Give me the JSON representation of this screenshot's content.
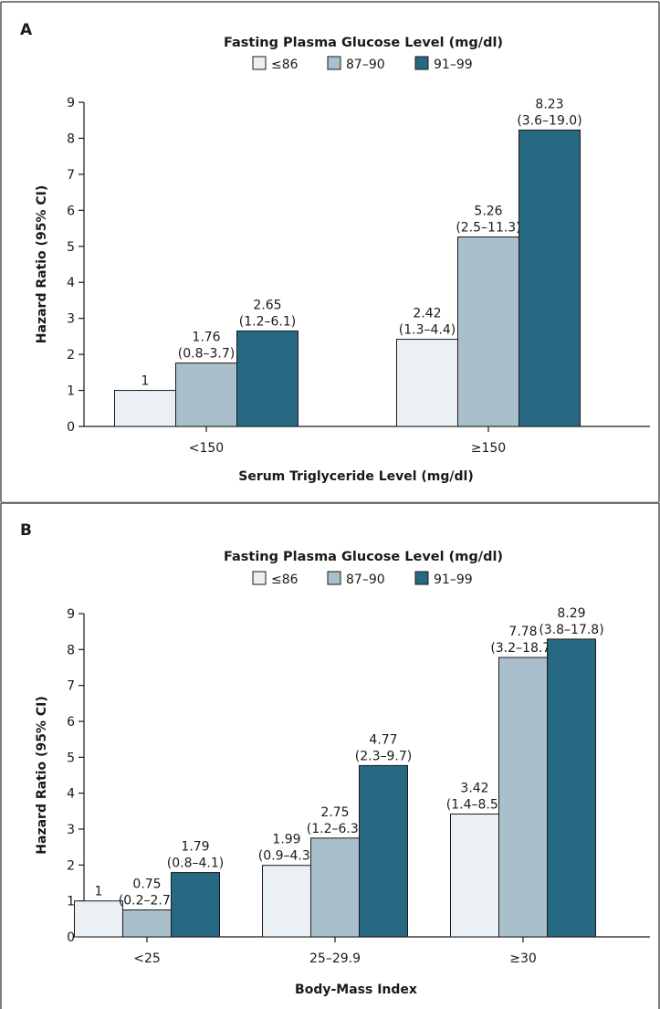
{
  "panels": [
    {
      "letter": "A",
      "legend_title": "Fasting Plasma Glucose Level (mg/dl)",
      "legend": [
        "≤86",
        "87–90",
        "91–99"
      ]
    },
    {
      "letter": "B",
      "legend_title": "Fasting Plasma Glucose Level (mg/dl)",
      "legend": [
        "≤86",
        "87–90",
        "91–99"
      ]
    }
  ],
  "colors": {
    "series": [
      "#eaf0f3",
      "#a9c0cc",
      "#276983"
    ],
    "stroke": "#1a1a1a",
    "border": "#555555"
  },
  "chart_data": [
    {
      "type": "bar",
      "title": "",
      "xlabel": "Serum Triglyceride Level (mg/dl)",
      "ylabel": "Hazard Ratio (95% CI)",
      "ylim": [
        0,
        9
      ],
      "yticks": [
        0,
        1,
        2,
        3,
        4,
        5,
        6,
        7,
        8,
        9
      ],
      "grid": false,
      "legend_position": "top-center",
      "categories": [
        "<150",
        "≥150"
      ],
      "series": [
        {
          "name": "≤86",
          "values": [
            1,
            2.42
          ],
          "labels": [
            [
              "1"
            ],
            [
              "2.42",
              "(1.3–4.4)"
            ]
          ]
        },
        {
          "name": "87–90",
          "values": [
            1.76,
            5.26
          ],
          "labels": [
            [
              "1.76",
              "(0.8–3.7)"
            ],
            [
              "5.26",
              "(2.5–11.3)"
            ]
          ]
        },
        {
          "name": "91–99",
          "values": [
            2.65,
            8.23
          ],
          "labels": [
            [
              "2.65",
              "(1.2–6.1)"
            ],
            [
              "8.23",
              "(3.6–19.0)"
            ]
          ]
        }
      ]
    },
    {
      "type": "bar",
      "title": "",
      "xlabel": "Body-Mass Index",
      "ylabel": "Hazard Ratio (95% CI)",
      "ylim": [
        0,
        9
      ],
      "yticks": [
        0,
        1,
        2,
        3,
        4,
        5,
        6,
        7,
        8,
        9
      ],
      "grid": false,
      "legend_position": "top-center",
      "categories": [
        "<25",
        "25–29.9",
        "≥30"
      ],
      "series": [
        {
          "name": "≤86",
          "values": [
            1,
            1.99,
            3.42
          ],
          "labels": [
            [
              "1"
            ],
            [
              "1.99",
              "(0.9–4.3)"
            ],
            [
              "3.42",
              "(1.4–8.5)"
            ]
          ]
        },
        {
          "name": "87–90",
          "values": [
            0.75,
            2.75,
            7.78
          ],
          "labels": [
            [
              "0.75",
              "(0.2–2.7)"
            ],
            [
              "2.75",
              "(1.2–6.3)"
            ],
            [
              "7.78",
              "(3.2–18.7)"
            ]
          ]
        },
        {
          "name": "91–99",
          "values": [
            1.79,
            4.77,
            8.29
          ],
          "labels": [
            [
              "1.79",
              "(0.8–4.1)"
            ],
            [
              "4.77",
              "(2.3–9.7)"
            ],
            [
              "8.29",
              "(3.8–17.8)"
            ]
          ]
        }
      ]
    }
  ]
}
